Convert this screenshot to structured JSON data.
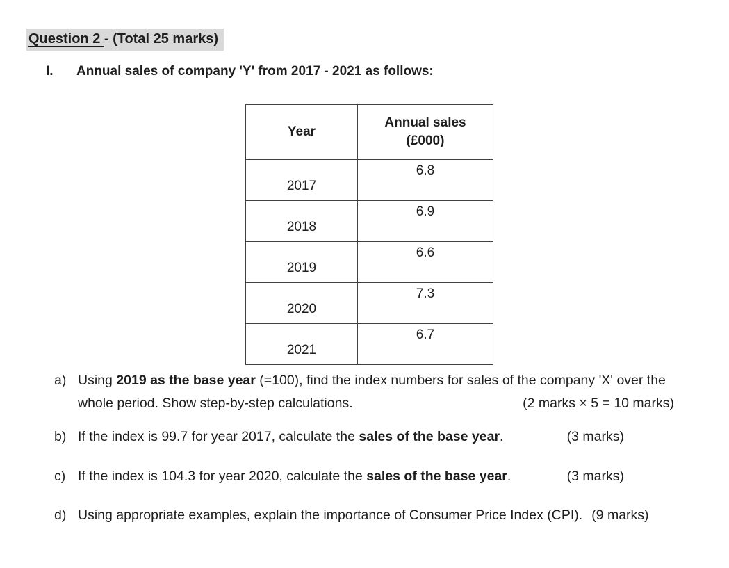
{
  "colors": {
    "title_highlight": "#d9d9d9",
    "text": "#1e1e1e",
    "table_border": "#404040"
  },
  "title": {
    "underlined": "Question 2 ",
    "rest": "- (Total 25 marks)"
  },
  "intro": {
    "numeral": "I.",
    "text": "Annual sales of company 'Y' from 2017 - 2021 as follows:"
  },
  "table": {
    "headers": [
      "Year",
      "Annual sales\n(£000)"
    ],
    "rows": [
      {
        "year": "2017",
        "sales": "6.8"
      },
      {
        "year": "2018",
        "sales": "6.9"
      },
      {
        "year": "2019",
        "sales": "6.6"
      },
      {
        "year": "2020",
        "sales": "7.3"
      },
      {
        "year": "2021",
        "sales": "6.7"
      }
    ]
  },
  "questions": {
    "a": {
      "label": "a)",
      "line1_pre": "Using ",
      "line1_bold": "2019 as the base year",
      "line1_post": " (=100), find the index numbers for sales of the company 'X' over the",
      "line2": "whole period. Show step-by-step calculations.",
      "marks": "(2 marks × 5 = 10 marks)"
    },
    "b": {
      "label": "b)",
      "pre": "If the index is 99.7 for year 2017, calculate the ",
      "bold": "sales of the base year",
      "post": ".",
      "marks": "(3 marks)"
    },
    "c": {
      "label": "c)",
      "pre": "If the index is 104.3 for year 2020, calculate the ",
      "bold": "sales of the base year",
      "post": ".",
      "marks": "(3 marks)"
    },
    "d": {
      "label": "d)",
      "text": "Using appropriate examples, explain the importance of Consumer Price Index (CPI).",
      "marks": "(9 marks)"
    }
  }
}
